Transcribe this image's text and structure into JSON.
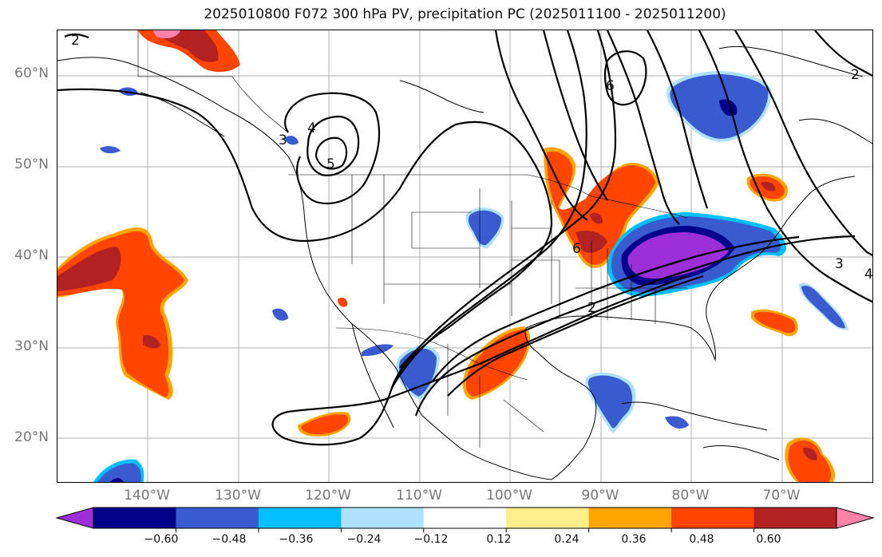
{
  "title": "2025010800 F072 300 hPa PV, precipitation PC (2025011100 - 2025011200)",
  "lat_labels": [
    "60°N",
    "50°N",
    "40°N",
    "30°N",
    "20°N"
  ],
  "lon_labels": [
    "140°W",
    "130°W",
    "120°W",
    "110°W",
    "100°W",
    "90°W",
    "80°W",
    "70°W"
  ],
  "map_extent": {
    "lon_min": -150,
    "lon_max": -60,
    "lat_min": 15,
    "lat_max": 65
  },
  "contour_labels": [
    "2",
    "2",
    "3",
    "4",
    "5",
    "6",
    "6",
    "2",
    "3",
    "4"
  ],
  "colorbar": {
    "tick_labels": [
      "−0.60",
      "−0.48",
      "−0.36",
      "−0.24",
      "−0.12",
      "0.12",
      "0.24",
      "0.36",
      "0.48",
      "0.60"
    ],
    "colors": [
      "#9b30d8",
      "#00008b",
      "#3a5bd0",
      "#00bfff",
      "#b0e2ff",
      "#ffffff",
      "#ffec8b",
      "#ffa500",
      "#ff4500",
      "#b22222",
      "#ff82ab"
    ]
  }
}
